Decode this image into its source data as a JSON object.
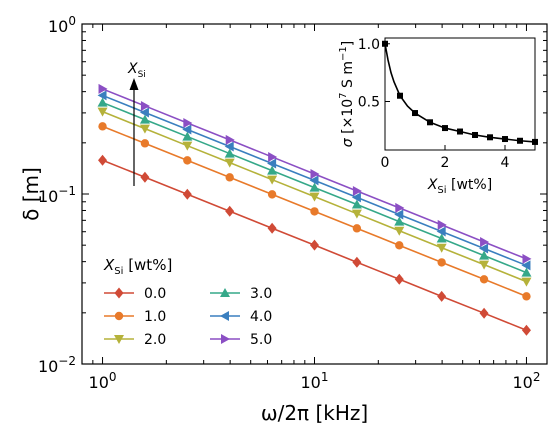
{
  "chart_data": [
    {
      "type": "line",
      "scale": {
        "x": "log",
        "y": "log"
      },
      "xlabel": "ω/2π [kHz]",
      "ylabel": "δ [m]",
      "xlim": [
        0.8,
        125
      ],
      "ylim": [
        0.01,
        1.0
      ],
      "x_ticks": [
        {
          "value": 1,
          "base": "10",
          "exp": "0"
        },
        {
          "value": 10,
          "base": "10",
          "exp": "1"
        },
        {
          "value": 100,
          "base": "10",
          "exp": "2"
        }
      ],
      "y_ticks": [
        {
          "value": 0.01,
          "base": "10",
          "exp": "−2"
        },
        {
          "value": 0.1,
          "base": "10",
          "exp": "−1"
        },
        {
          "value": 1,
          "base": "10",
          "exp": "0"
        }
      ],
      "x": [
        1.0,
        1.585,
        2.512,
        3.981,
        6.31,
        10.0,
        15.85,
        25.12,
        39.81,
        63.1,
        100.0
      ],
      "legend_title": {
        "symbol": "X",
        "sub": "Si",
        "suffix": " [wt%]"
      },
      "legend_placement": "bottom-left",
      "arrow_annotation": {
        "symbol": "X",
        "sub": "Si"
      },
      "series": [
        {
          "name": "0.0",
          "color": "#d04a36",
          "marker": "diamond",
          "values": [
            0.158,
            0.1255,
            0.0997,
            0.0792,
            0.0629,
            0.05,
            0.0397,
            0.0315,
            0.025,
            0.0199,
            0.0158
          ]
        },
        {
          "name": "1.0",
          "color": "#e87a2a",
          "marker": "circle",
          "values": [
            0.25,
            0.1986,
            0.1577,
            0.1253,
            0.0995,
            0.079,
            0.0628,
            0.0499,
            0.0396,
            0.0315,
            0.025
          ]
        },
        {
          "name": "2.0",
          "color": "#b5b23a",
          "marker": "triangle-down",
          "values": [
            0.305,
            0.2423,
            0.1924,
            0.1529,
            0.1214,
            0.0965,
            0.0766,
            0.0608,
            0.0483,
            0.0384,
            0.0305
          ]
        },
        {
          "name": "3.0",
          "color": "#35a889",
          "marker": "triangle-up",
          "values": [
            0.345,
            0.274,
            0.2177,
            0.1729,
            0.1373,
            0.1091,
            0.0867,
            0.0688,
            0.0547,
            0.0434,
            0.0345
          ]
        },
        {
          "name": "4.0",
          "color": "#3a7fbf",
          "marker": "triangle-left",
          "values": [
            0.38,
            0.3018,
            0.2397,
            0.1904,
            0.1512,
            0.1202,
            0.0955,
            0.0758,
            0.0602,
            0.0478,
            0.038
          ]
        },
        {
          "name": "5.0",
          "color": "#8b4fc4",
          "marker": "triangle-right",
          "values": [
            0.415,
            0.3296,
            0.2618,
            0.208,
            0.1652,
            0.1312,
            0.1042,
            0.0828,
            0.0658,
            0.0522,
            0.0415
          ]
        }
      ]
    },
    {
      "type": "line",
      "position": "inset top-right",
      "xlabel": {
        "symbol": "X",
        "sub": "Si",
        "suffix": " [wt%]"
      },
      "ylabel": {
        "symbol": "σ",
        "pre": " [×10",
        "exp": "7",
        "post": " S m",
        "exp2": "−1",
        "close": "]"
      },
      "xlim": [
        0,
        5
      ],
      "ylim": [
        0.08,
        1.05
      ],
      "x_ticks": [
        "0",
        "2",
        "4"
      ],
      "y_ticks": [
        "0.5",
        "1.0"
      ],
      "x_tick_values": [
        0,
        2,
        4
      ],
      "y_tick_values": [
        0.5,
        1.0
      ],
      "points": {
        "x": [
          0.0,
          0.5,
          1.0,
          1.5,
          2.0,
          2.5,
          3.0,
          3.5,
          4.0,
          4.5,
          5.0
        ],
        "y": [
          1.0,
          0.55,
          0.4,
          0.32,
          0.27,
          0.24,
          0.21,
          0.19,
          0.175,
          0.16,
          0.15
        ]
      },
      "curve": {
        "x": [
          0.0,
          0.1,
          0.2,
          0.3,
          0.5,
          0.75,
          1.0,
          1.5,
          2.0,
          2.5,
          3.0,
          3.5,
          4.0,
          4.5,
          5.0
        ],
        "y": [
          1.0,
          0.86,
          0.75,
          0.67,
          0.55,
          0.46,
          0.4,
          0.32,
          0.27,
          0.24,
          0.21,
          0.19,
          0.175,
          0.16,
          0.15
        ]
      },
      "color": "#000000"
    }
  ]
}
